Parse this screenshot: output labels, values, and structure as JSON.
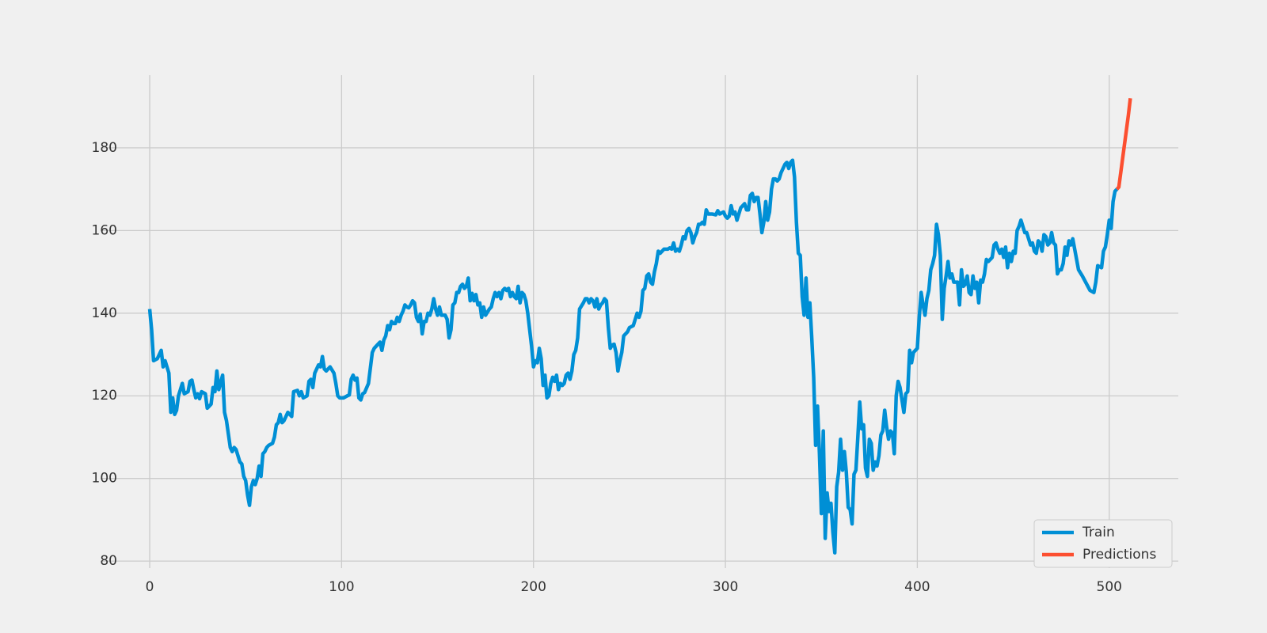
{
  "chart_data": {
    "type": "line",
    "series": [
      {
        "name": "Train",
        "color": "#008fd5",
        "x": [
          0,
          1,
          2,
          4,
          6,
          7,
          8,
          10,
          11,
          12,
          13,
          14,
          15,
          17,
          18,
          20,
          21,
          22,
          23,
          24,
          25,
          26,
          27,
          29,
          30,
          31,
          32,
          33,
          34,
          35,
          36,
          38,
          39,
          40,
          42,
          43,
          44,
          45,
          47,
          48,
          49,
          50,
          51,
          52,
          53,
          54,
          55,
          56,
          57,
          58,
          59,
          60,
          61,
          62,
          64,
          65,
          66,
          67,
          68,
          69,
          70,
          72,
          74,
          75,
          77,
          78,
          79,
          80,
          82,
          83,
          84,
          85,
          86,
          87,
          88,
          89,
          90,
          91,
          92,
          94,
          96,
          97,
          98,
          99,
          101,
          103,
          104,
          105,
          106,
          107,
          108,
          109,
          110,
          111,
          112,
          114,
          116,
          117,
          119,
          120,
          121,
          122,
          123,
          124,
          125,
          126,
          127,
          128,
          129,
          130,
          131,
          132,
          133,
          134,
          135,
          136,
          137,
          138,
          139,
          140,
          141,
          142,
          143,
          144,
          145,
          146,
          147,
          148,
          149,
          150,
          151,
          152,
          154,
          155,
          156,
          157,
          158,
          159,
          160,
          161,
          162,
          163,
          164,
          165,
          166,
          167,
          168,
          169,
          170,
          171,
          172,
          173,
          174,
          175,
          177,
          178,
          179,
          180,
          181,
          182,
          183,
          184,
          185,
          186,
          187,
          188,
          189,
          190,
          191,
          192,
          193,
          194,
          195,
          196,
          197,
          198,
          199,
          200,
          201,
          202,
          203,
          204,
          205,
          206,
          207,
          208,
          209,
          210,
          211,
          212,
          213,
          214,
          215,
          216,
          217,
          218,
          219,
          220,
          221,
          222,
          223,
          224,
          226,
          227,
          228,
          229,
          230,
          231,
          232,
          233,
          234,
          235,
          236,
          237,
          238,
          239,
          240,
          241,
          242,
          243,
          244,
          245,
          246,
          247,
          249,
          250,
          252,
          253,
          254,
          255,
          256,
          257,
          258,
          259,
          260,
          261,
          262,
          263,
          264,
          265,
          266,
          268,
          270,
          271,
          272,
          273,
          274,
          275,
          276,
          277,
          278,
          279,
          280,
          281,
          282,
          283,
          284,
          285,
          286,
          287,
          288,
          289,
          290,
          291,
          293,
          295,
          296,
          297,
          299,
          300,
          301,
          302,
          303,
          304,
          305,
          306,
          307,
          308,
          310,
          311,
          312,
          313,
          314,
          315,
          316,
          317,
          318,
          319,
          320,
          321,
          322,
          323,
          324,
          325,
          326,
          327,
          328,
          329,
          330,
          331,
          332,
          333,
          334,
          335,
          336,
          337,
          338,
          339,
          340,
          341,
          342,
          343,
          344,
          345,
          346,
          347,
          348,
          349,
          350,
          351,
          352,
          353,
          354,
          355,
          356,
          357,
          358,
          359,
          360,
          361,
          362,
          363,
          364,
          365,
          366,
          367,
          368,
          369,
          370,
          371,
          372,
          373,
          374,
          375,
          376,
          377,
          378,
          379,
          380,
          381,
          382,
          383,
          384,
          385,
          386,
          387,
          388,
          389,
          390,
          391,
          392,
          393,
          394,
          395,
          396,
          397,
          398,
          399,
          400,
          401,
          402,
          403,
          404,
          405,
          406,
          407,
          408,
          409,
          410,
          411,
          412,
          413,
          414,
          415,
          416,
          417,
          418,
          419,
          420,
          421,
          422,
          423,
          424,
          425,
          426,
          427,
          428,
          429,
          430,
          431,
          432,
          433,
          434,
          435,
          436,
          437,
          438,
          439,
          440,
          441,
          442,
          443,
          444,
          445,
          446,
          447,
          448,
          449,
          450,
          451,
          452,
          453,
          454,
          455,
          456,
          457,
          458,
          459,
          460,
          461,
          462,
          463,
          464,
          465,
          466,
          467,
          468,
          469,
          470,
          471,
          472,
          473,
          474,
          475,
          476,
          477,
          478,
          479,
          480,
          481,
          484,
          486,
          490,
          492,
          493,
          494,
          496,
          497,
          498,
          499,
          500,
          501,
          502,
          503,
          504
        ],
        "values": [
          141,
          136,
          128.5,
          129,
          131,
          127,
          128.5,
          125.5,
          116,
          119.5,
          115.5,
          116.5,
          120,
          123,
          120.5,
          121,
          123.5,
          123.8,
          121.5,
          119.5,
          120.5,
          119.3,
          121,
          120.5,
          117,
          117.5,
          118,
          122,
          121,
          126,
          121.5,
          125,
          116,
          114,
          107.5,
          106.5,
          107.5,
          107,
          104,
          103.5,
          100.5,
          99.5,
          96,
          93.5,
          98,
          99.5,
          98.5,
          100,
          103,
          100.5,
          106,
          106.5,
          107.5,
          108,
          108.5,
          110,
          113,
          113.5,
          115.5,
          113.5,
          114,
          116,
          115,
          121,
          121.3,
          120,
          121,
          119.5,
          120,
          123.5,
          124,
          122,
          125.5,
          126.5,
          127.5,
          127,
          129.5,
          126.5,
          126,
          127,
          125.5,
          123,
          120,
          119.5,
          119.5,
          120,
          120.2,
          124,
          125,
          123.8,
          124.3,
          119.5,
          119,
          120.5,
          120.8,
          123,
          130.5,
          131.5,
          132.5,
          133,
          131,
          133.5,
          134.5,
          137,
          136,
          138,
          137.5,
          137.5,
          139,
          138,
          139.5,
          140.5,
          142,
          141.5,
          141.3,
          142,
          143,
          142.5,
          139,
          138,
          139.8,
          135,
          138,
          138,
          140,
          139.5,
          141,
          143.5,
          141,
          139.5,
          141.5,
          139.5,
          139.5,
          138.5,
          134,
          136,
          142,
          142.5,
          145,
          145,
          146.5,
          147,
          146,
          146.5,
          148.5,
          143,
          144.8,
          143,
          144.5,
          142,
          142.5,
          139,
          141.5,
          139.5,
          141,
          141.5,
          143.5,
          145,
          144,
          145,
          143.5,
          145.5,
          146,
          145.5,
          146,
          144,
          145,
          144,
          143.5,
          146.5,
          142.5,
          145,
          144.5,
          143,
          140,
          136,
          132,
          127,
          128.5,
          128,
          131.5,
          129,
          122.5,
          125,
          119.5,
          120,
          123,
          124.5,
          123.5,
          125,
          121.5,
          123,
          122.5,
          123,
          125,
          125.5,
          124,
          126,
          130,
          131,
          134,
          141,
          142.5,
          143.5,
          143.5,
          142.5,
          143.5,
          143,
          141.5,
          143.5,
          141,
          142,
          142.5,
          143.5,
          143,
          136.5,
          131.5,
          132.3,
          132.5,
          130.5,
          126,
          128.5,
          130.5,
          134.5,
          135.5,
          136.5,
          137,
          138.5,
          140,
          139,
          140.5,
          145.5,
          146,
          149,
          149.5,
          147.5,
          147,
          150,
          152,
          155,
          154.5,
          155.5,
          155.5,
          155.8,
          155.5,
          157,
          155,
          155.5,
          155,
          156.5,
          158.5,
          158,
          160,
          160.5,
          159.5,
          157,
          158.5,
          159.5,
          161.5,
          161.5,
          162,
          161.5,
          165,
          164,
          164,
          163.8,
          164.8,
          164,
          164.5,
          163.5,
          163,
          163.5,
          166,
          164,
          164.5,
          162.5,
          164,
          165.5,
          166.5,
          165,
          165,
          168.5,
          169,
          167,
          168,
          168,
          164,
          159.5,
          162,
          167,
          162.5,
          164.5,
          170,
          172.5,
          172.5,
          172,
          172.5,
          174,
          175,
          176,
          176.5,
          175,
          176.5,
          177,
          173,
          162,
          154.5,
          154,
          144,
          139.5,
          148.5,
          139,
          142.5,
          134,
          124.5,
          108,
          117.5,
          106,
          91.5,
          111.5,
          85.5,
          96.5,
          92,
          94,
          87,
          82,
          98,
          101.5,
          109.5,
          102,
          106.5,
          101.5,
          93,
          92.5,
          89,
          101,
          102,
          110,
          118.5,
          112,
          113,
          102.5,
          100.5,
          109.5,
          108.5,
          102,
          104,
          103,
          105.5,
          110.5,
          111.5,
          116.5,
          112.5,
          109.5,
          111.5,
          111,
          106,
          120,
          123.5,
          122,
          119,
          116,
          120.5,
          121,
          131,
          128,
          130.5,
          131,
          131.5,
          139,
          145,
          142,
          139.5,
          143.5,
          145.5,
          150.5,
          152,
          154,
          161.5,
          159,
          154,
          138.5,
          146,
          149,
          152.5,
          148.5,
          149.5,
          147.5,
          147.5,
          147.5,
          142,
          150.5,
          146.5,
          147,
          149,
          145,
          144.5,
          149,
          146,
          147.5,
          142.5,
          148,
          147.5,
          149.5,
          153,
          152.5,
          153,
          153.5,
          156.5,
          157,
          155.5,
          154.5,
          155.5,
          153.5,
          156,
          151,
          154.5,
          152.5,
          155,
          154.5,
          160,
          161,
          162.5,
          161,
          159.5,
          159.5,
          158,
          156.5,
          157,
          155,
          154.5,
          157.5,
          157,
          155,
          159,
          158.5,
          156.5,
          157,
          159.5,
          157,
          156.5,
          149.5,
          150.5,
          150.5,
          152,
          156,
          154,
          157.5,
          156.5,
          158,
          150.5,
          149,
          145.5,
          145,
          147.5,
          151.5,
          151,
          155,
          156,
          159,
          162.5,
          160.5,
          167,
          169.5,
          170
        ]
      },
      {
        "name": "Predictions",
        "color": "#fc4f30",
        "x": [
          504,
          505,
          506,
          507,
          508,
          509,
          510,
          511
        ],
        "values": [
          170,
          170.5,
          174,
          177.5,
          181,
          184.5,
          188,
          192
        ]
      }
    ],
    "xlim": [
      -25.6,
      536
    ],
    "ylim": [
      78.3,
      197.6
    ],
    "xticks": [
      0,
      100,
      200,
      300,
      400,
      500
    ],
    "yticks": [
      80,
      100,
      120,
      140,
      160,
      180
    ],
    "grid": true,
    "legend": "lower right"
  }
}
